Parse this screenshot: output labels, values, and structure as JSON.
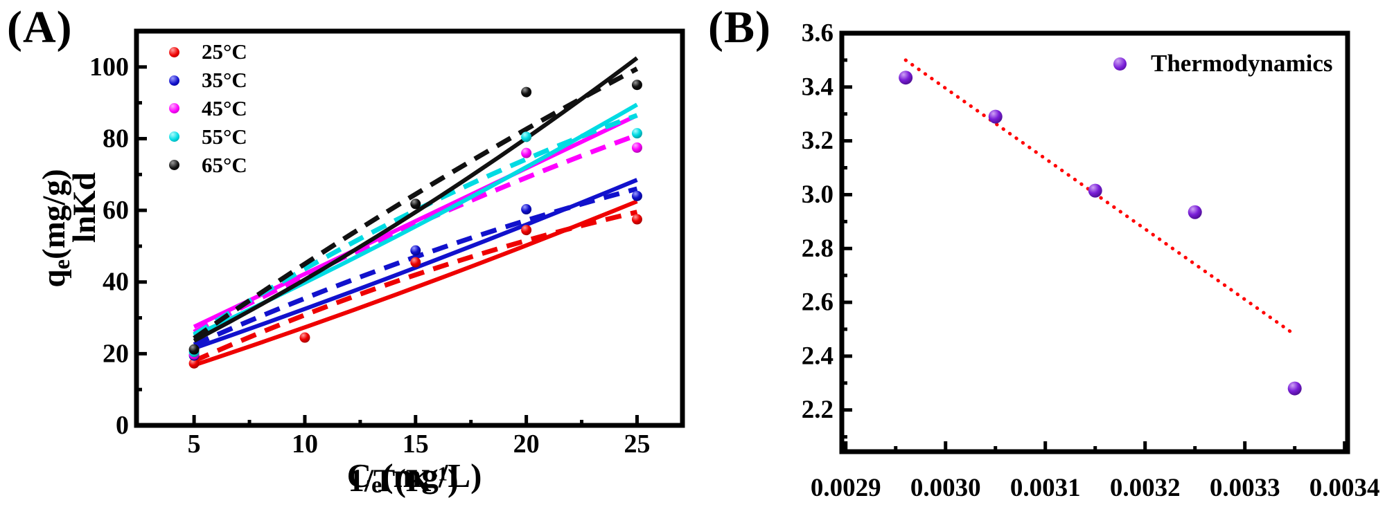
{
  "figure": {
    "background": "#ffffff"
  },
  "panels": {
    "a": {
      "tag": "(A)",
      "xlabel": {
        "pre": "C",
        "sub": "e",
        "post": "(mg/L)"
      },
      "ylabel": {
        "pre": "q",
        "sub": "e",
        "post": "(mg/g)"
      }
    },
    "b": {
      "tag": "(B)",
      "xlabel": {
        "pre": "1/T(K",
        "sup": "-1",
        "post": ")"
      },
      "ylabel": {
        "text": "lnKd"
      }
    }
  },
  "chart_data": [
    {
      "id": "A",
      "type": "scatter",
      "title": "",
      "xlabel": "Ce(mg/L)",
      "ylabel": "qe(mg/g)",
      "xlim": [
        2.4,
        27.05
      ],
      "ylim": [
        0,
        110
      ],
      "xticks": [
        5,
        10,
        15,
        20,
        25
      ],
      "xtick_labels": [
        "5",
        "10",
        "15",
        "20",
        "25"
      ],
      "xminor": [
        7.5,
        12.5,
        17.5,
        22.5
      ],
      "yticks": [
        0,
        20,
        40,
        60,
        80,
        100
      ],
      "ytick_labels": [
        "0",
        "20",
        "40",
        "60",
        "80",
        "100"
      ],
      "yminor": [
        10,
        30,
        50,
        70,
        90
      ],
      "grid": false,
      "legend_position": "top-left",
      "series": [
        {
          "name": "25°C",
          "color": "#ee0000",
          "color_light": "#ff9d9d",
          "color_dark": "#8f0000",
          "points": [
            [
              5,
              17.3
            ],
            [
              10,
              24.5
            ],
            [
              15,
              45.5
            ],
            [
              20,
              54.5
            ],
            [
              25,
              57.5
            ]
          ],
          "solid_fit": {
            "x": [
              5,
              15,
              25
            ],
            "y": [
              16.8,
              38.5,
              62.5
            ]
          },
          "dashed_fit": {
            "x": [
              5,
              15,
              25
            ],
            "y": [
              18.0,
              42.0,
              59.5
            ]
          }
        },
        {
          "name": "35°C",
          "color": "#1111cc",
          "color_light": "#9d9dff",
          "color_dark": "#000077",
          "points": [
            [
              5,
              19.5
            ],
            [
              15,
              48.8
            ],
            [
              20,
              60.3
            ],
            [
              25,
              64.0
            ]
          ],
          "solid_fit": {
            "x": [
              5,
              15,
              25
            ],
            "y": [
              21.5,
              44.0,
              68.5
            ]
          },
          "dashed_fit": {
            "x": [
              5,
              15,
              25
            ],
            "y": [
              22.5,
              47.0,
              66.0
            ]
          }
        },
        {
          "name": "45°C",
          "color": "#ff00ff",
          "color_light": "#ffaaff",
          "color_dark": "#990099",
          "points": [
            [
              5,
              19.8
            ],
            [
              20,
              76.0
            ],
            [
              25,
              77.5
            ]
          ],
          "solid_fit": {
            "x": [
              5,
              15,
              25
            ],
            "y": [
              27.5,
              57.0,
              86.5
            ]
          },
          "dashed_fit": {
            "x": [
              5,
              15,
              25
            ],
            "y": [
              26.0,
              56.0,
              81.0
            ]
          }
        },
        {
          "name": "55°C",
          "color": "#00dbe3",
          "color_light": "#aefcff",
          "color_dark": "#00888e",
          "points": [
            [
              5,
              20.5
            ],
            [
              20,
              80.5
            ],
            [
              25,
              81.5
            ]
          ],
          "solid_fit": {
            "x": [
              5,
              15,
              25
            ],
            "y": [
              25.0,
              55.5,
              89.5
            ]
          },
          "dashed_fit": {
            "x": [
              5,
              15,
              25
            ],
            "y": [
              25.3,
              60.0,
              86.5
            ]
          }
        },
        {
          "name": "65°C",
          "color": "#111111",
          "color_light": "#999999",
          "color_dark": "#000000",
          "points": [
            [
              5,
              21.2
            ],
            [
              15,
              61.8
            ],
            [
              20,
              93.0
            ],
            [
              25,
              95.0
            ]
          ],
          "solid_fit": {
            "x": [
              5,
              15,
              25
            ],
            "y": [
              23.6,
              59.5,
              102.5
            ]
          },
          "dashed_fit": {
            "x": [
              5,
              15,
              25
            ],
            "y": [
              24.3,
              64.5,
              99.5
            ]
          }
        }
      ]
    },
    {
      "id": "B",
      "type": "scatter",
      "title": "",
      "xlabel": "1/T(K-1)",
      "ylabel": "lnKd",
      "xlim": [
        0.002896,
        0.003403
      ],
      "ylim": [
        2.045,
        3.6
      ],
      "xticks": [
        0.0029,
        0.003,
        0.0031,
        0.0032,
        0.0033,
        0.0034
      ],
      "xtick_labels": [
        "0.0029",
        "0.0030",
        "0.0031",
        "0.0032",
        "0.0033",
        "0.0034"
      ],
      "xminor": [
        0.00295,
        0.00305,
        0.00315,
        0.00325,
        0.00335
      ],
      "yticks": [
        2.2,
        2.4,
        2.6,
        2.8,
        3.0,
        3.2,
        3.4,
        3.6
      ],
      "ytick_labels": [
        "2.2",
        "2.4",
        "2.6",
        "2.8",
        "3.0",
        "3.2",
        "3.4",
        "3.6"
      ],
      "yminor": [
        2.1,
        2.3,
        2.5,
        2.7,
        2.9,
        3.1,
        3.3,
        3.5
      ],
      "grid": false,
      "legend_position": "top-right",
      "series": [
        {
          "name": "Thermodynamics",
          "color": "#7a1fd8",
          "color_light": "#cfa3f5",
          "color_dark": "#40087e",
          "points": [
            [
              0.00296,
              3.435
            ],
            [
              0.00305,
              3.29
            ],
            [
              0.00315,
              3.015
            ],
            [
              0.00325,
              2.935
            ],
            [
              0.00335,
              2.28
            ]
          ],
          "trend": {
            "x": [
              0.00296,
              0.00335
            ],
            "y": [
              3.5,
              2.48
            ],
            "color": "#ff0000",
            "style": "dotted"
          }
        }
      ]
    }
  ]
}
